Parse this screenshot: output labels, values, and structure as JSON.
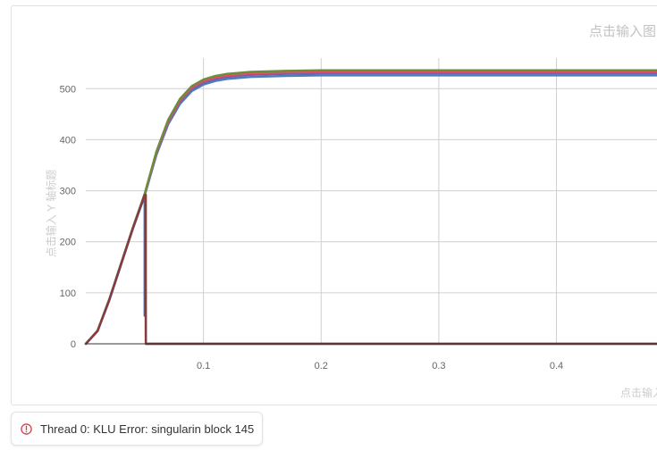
{
  "chart_data": {
    "type": "line",
    "title": "点击输入图",
    "xlabel": "点击输入",
    "ylabel": "点击输入 Y 轴标题",
    "xlim": [
      0,
      0.49
    ],
    "ylim": [
      0,
      560
    ],
    "x_ticks": [
      "0.1",
      "0.2",
      "0.3",
      "0.4"
    ],
    "y_ticks": [
      "0",
      "100",
      "200",
      "300",
      "400",
      "500"
    ],
    "grid": true,
    "legend": "none",
    "series": [
      {
        "color": "#4a7ec0",
        "x": [
          0,
          0.01,
          0.02,
          0.03,
          0.04,
          0.05,
          0.06,
          0.07,
          0.08,
          0.09,
          0.1,
          0.11,
          0.12,
          0.14,
          0.17,
          0.2,
          0.25,
          0.3,
          0.4,
          0.49
        ],
        "y": [
          0,
          25,
          85,
          155,
          225,
          290,
          370,
          430,
          470,
          495,
          508,
          515,
          519,
          523,
          525,
          526,
          526,
          526,
          526,
          526
        ]
      },
      {
        "color": "#7a5ea8",
        "x": [
          0,
          0.01,
          0.02,
          0.03,
          0.04,
          0.05,
          0.06,
          0.07,
          0.08,
          0.09,
          0.1,
          0.11,
          0.12,
          0.14,
          0.17,
          0.2,
          0.25,
          0.3,
          0.4,
          0.49
        ],
        "y": [
          0,
          25,
          86,
          156,
          226,
          292,
          373,
          433,
          474,
          499,
          512,
          519,
          523,
          527,
          529,
          530,
          530,
          530,
          530,
          530
        ]
      },
      {
        "color": "#e04f63",
        "x": [
          0,
          0.01,
          0.02,
          0.03,
          0.04,
          0.05,
          0.06,
          0.07,
          0.08,
          0.09,
          0.1,
          0.11,
          0.12,
          0.14,
          0.17,
          0.2,
          0.25,
          0.3,
          0.4,
          0.49
        ],
        "y": [
          0,
          26,
          87,
          157,
          227,
          293,
          375,
          436,
          477,
          502,
          515,
          522,
          526,
          530,
          532,
          533,
          533,
          533,
          533,
          533
        ]
      },
      {
        "color": "#6b8e3a",
        "x": [
          0,
          0.01,
          0.02,
          0.03,
          0.04,
          0.05,
          0.06,
          0.07,
          0.08,
          0.09,
          0.1,
          0.11,
          0.12,
          0.14,
          0.17,
          0.2,
          0.25,
          0.3,
          0.4,
          0.49
        ],
        "y": [
          0,
          26,
          88,
          158,
          228,
          294,
          377,
          439,
          480,
          505,
          518,
          525,
          529,
          533,
          535,
          536,
          536,
          536,
          536,
          536
        ]
      },
      {
        "color": "#2a6fb8",
        "x": [
          0,
          0.01,
          0.02,
          0.03,
          0.04,
          0.05,
          0.05,
          0.0505,
          0.051,
          0.052,
          0.3,
          0.49
        ],
        "y": [
          0,
          25,
          86,
          156,
          226,
          290,
          55,
          280,
          0,
          0,
          0,
          0
        ]
      },
      {
        "color": "#8b3a3a",
        "x": [
          0,
          0.01,
          0.02,
          0.03,
          0.04,
          0.05,
          0.051,
          0.051,
          0.052,
          0.3,
          0.49
        ],
        "y": [
          0,
          25,
          87,
          157,
          227,
          292,
          292,
          0,
          0,
          0,
          0
        ]
      }
    ]
  },
  "status": {
    "error_icon": "alert-circle-icon",
    "error_color": "#e03c4a",
    "error_message": "Thread 0: KLU Error: singularin block 145"
  }
}
